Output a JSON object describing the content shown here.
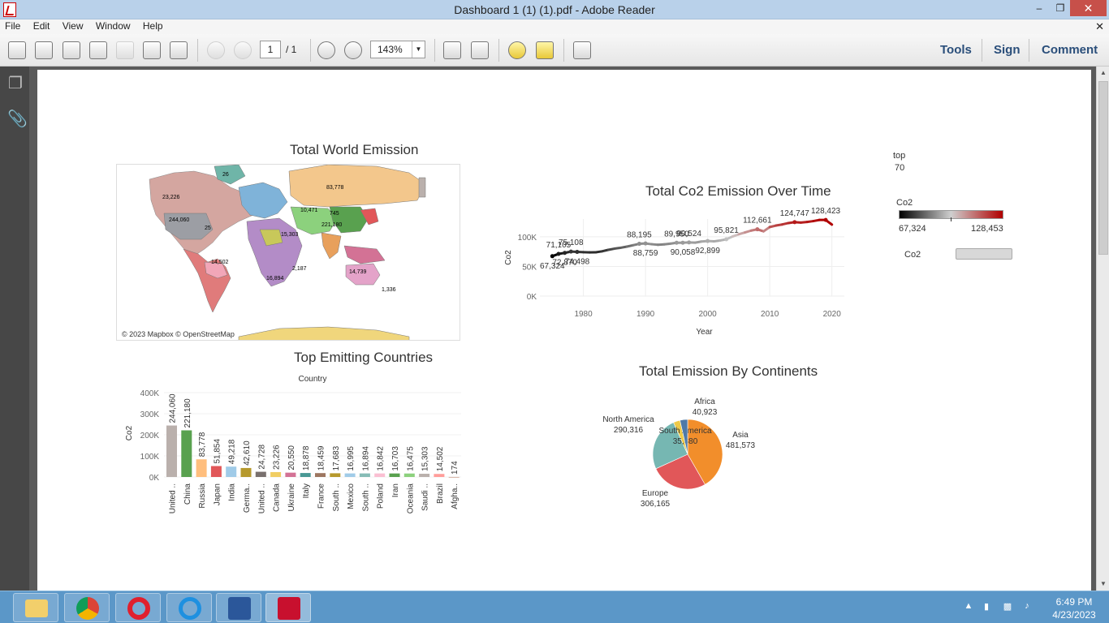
{
  "window": {
    "title": "Dashboard 1 (1) (1).pdf - Adobe Reader",
    "minimize_label": "–",
    "maximize_label": "❐",
    "close_label": "✕"
  },
  "menu": {
    "items": [
      "File",
      "Edit",
      "View",
      "Window",
      "Help"
    ],
    "close_label": "✕"
  },
  "toolbar": {
    "page_current": "1",
    "page_total": "/ 1",
    "zoom": "143%",
    "tools_label": "Tools",
    "sign_label": "Sign",
    "comment_label": "Comment",
    "icons": [
      "create-pdf-icon",
      "convert-pdf-icon",
      "edit-icon",
      "upload-icon",
      "save-icon",
      "print-icon",
      "email-icon",
      "prev-page-icon",
      "next-page-icon",
      "zoom-out-icon",
      "zoom-in-icon",
      "fit-page-icon",
      "scroll-mode-icon",
      "sticky-note-icon",
      "highlight-icon",
      "fullscreen-icon"
    ]
  },
  "dashboard": {
    "map_title": "Total World Emission",
    "map_attribution": "© 2023 Mapbox © OpenStreetMap",
    "map_labels": [
      "26",
      "23,226",
      "83,778",
      "10,471",
      "745",
      "221,180",
      "244,060",
      "25",
      "15,303",
      "14,502",
      "14,739",
      "1,336",
      "16,894",
      "2,187"
    ],
    "line_title": "Total Co2 Emission Over Time",
    "bar_title": "Top Emitting Countries",
    "pie_title": "Total Emission By Continents",
    "filter_top_label": "top",
    "filter_top_value": "70",
    "legend_title": "Co2",
    "legend_min": "67,324",
    "legend_max": "128,453",
    "slider_label": "Co2",
    "colors": {
      "low": "#000000",
      "mid": "#cfcfcf",
      "high": "#b00000"
    }
  },
  "chart_data": [
    {
      "type": "line",
      "title": "Total Co2 Emission Over Time",
      "xlabel": "Year",
      "ylabel": "Co2",
      "xlim": [
        1973,
        2022
      ],
      "ylim": [
        0,
        130000
      ],
      "xticks": [
        "1980",
        "1990",
        "2000",
        "2010",
        "2020"
      ],
      "yticks": [
        "0K",
        "50K",
        "100K"
      ],
      "grid": true,
      "x": [
        1975,
        1976,
        1977,
        1978,
        1979,
        1980,
        1981,
        1982,
        1983,
        1984,
        1985,
        1986,
        1987,
        1988,
        1989,
        1990,
        1991,
        1992,
        1993,
        1994,
        1995,
        1996,
        1997,
        1998,
        1999,
        2000,
        2001,
        2002,
        2003,
        2004,
        2005,
        2006,
        2007,
        2008,
        2009,
        2010,
        2011,
        2012,
        2013,
        2014,
        2015,
        2016,
        2017,
        2018,
        2019,
        2020
      ],
      "values": [
        67324,
        71105,
        72870,
        75108,
        74498,
        74100,
        73800,
        73900,
        75500,
        78000,
        80000,
        81500,
        83500,
        85800,
        88195,
        88759,
        87500,
        86500,
        87300,
        88500,
        89950,
        90058,
        90524,
        90200,
        92000,
        92899,
        92300,
        93700,
        95821,
        100500,
        104200,
        107300,
        110500,
        112661,
        109200,
        116500,
        119000,
        120800,
        123200,
        124747,
        124000,
        125000,
        126500,
        128453,
        128423,
        120600
      ],
      "data_labels": [
        {
          "x": 1975,
          "value": "67,324"
        },
        {
          "x": 1976,
          "value": "71,105"
        },
        {
          "x": 1977,
          "value": "72,870"
        },
        {
          "x": 1978,
          "value": "75,108"
        },
        {
          "x": 1979,
          "value": "74,498"
        },
        {
          "x": 1989,
          "value": "88,195"
        },
        {
          "x": 1990,
          "value": "88,759"
        },
        {
          "x": 1995,
          "value": "89,950"
        },
        {
          "x": 1996,
          "value": "90,058"
        },
        {
          "x": 1997,
          "value": "90,524"
        },
        {
          "x": 2000,
          "value": "92,899"
        },
        {
          "x": 2003,
          "value": "95,821"
        },
        {
          "x": 2008,
          "value": "112,661"
        },
        {
          "x": 2014,
          "value": "124,747"
        },
        {
          "x": 2019,
          "value": "128,423"
        }
      ]
    },
    {
      "type": "bar",
      "title": "Top Emitting Countries",
      "xlabel": "Country",
      "ylabel": "Co2",
      "ylim": [
        0,
        400000
      ],
      "yticks": [
        "0K",
        "100K",
        "200K",
        "300K",
        "400K"
      ],
      "categories": [
        "United ..",
        "China",
        "Russia",
        "Japan",
        "India",
        "Germa..",
        "United ..",
        "Canada",
        "Ukraine",
        "Italy",
        "France",
        "South ..",
        "Mexico",
        "South ..",
        "Poland",
        "Iran",
        "Oceania",
        "Saudi ..",
        "Brazil",
        "Afgha.."
      ],
      "values": [
        244060,
        221180,
        83778,
        51854,
        49218,
        42610,
        24728,
        23226,
        20550,
        18878,
        18459,
        17683,
        16995,
        16894,
        16842,
        16703,
        16475,
        15303,
        14502,
        174
      ],
      "value_labels": [
        "244,060",
        "221,180",
        "83,778",
        "51,854",
        "49,218",
        "42,610",
        "24,728",
        "23,226",
        "20,550",
        "18,878",
        "18,459",
        "17,683",
        "16,995",
        "16,894",
        "16,842",
        "16,703",
        "16,475",
        "15,303",
        "14,502",
        "174"
      ],
      "colors": [
        "#bab0ac",
        "#59a14f",
        "#ffbe7d",
        "#e15759",
        "#a0cbe8",
        "#b6992d",
        "#79706e",
        "#f1ce63",
        "#d37295",
        "#499894",
        "#9d7660",
        "#b6992d",
        "#a0cbe8",
        "#86bcb6",
        "#fabfd2",
        "#59a14f",
        "#8cd17d",
        "#bab0ac",
        "#ff9d9a",
        "#d7b5a6"
      ]
    },
    {
      "type": "pie",
      "title": "Total Emission By Continents",
      "categories": [
        "Asia",
        "Europe",
        "North America",
        "South America",
        "Africa"
      ],
      "values": [
        481573,
        306165,
        290316,
        35880,
        40923
      ],
      "value_labels": [
        "481,573",
        "306,165",
        "290,316",
        "35,880",
        "40,923"
      ],
      "colors": [
        "#f28e2b",
        "#e15759",
        "#76b7b2",
        "#edc948",
        "#4e79a7"
      ]
    }
  ],
  "taskbar": {
    "apps": [
      "file-explorer-icon",
      "chrome-icon",
      "opera-icon",
      "internet-explorer-icon",
      "word-icon",
      "adobe-reader-icon"
    ],
    "time": "6:49 PM",
    "date": "4/23/2023"
  }
}
